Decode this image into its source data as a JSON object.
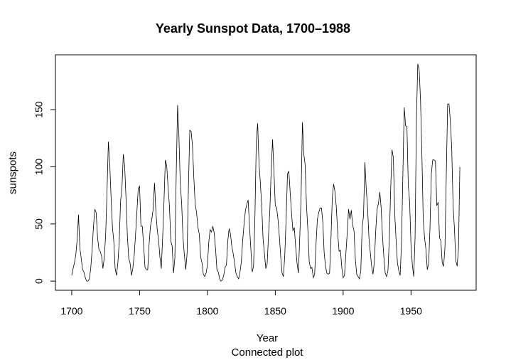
{
  "chart_data": {
    "type": "line",
    "title": "Yearly Sunspot Data, 1700–1988",
    "xlabel": "Year",
    "subtitle": "Connected plot",
    "ylabel": "sunspots",
    "xlim": [
      1688,
      1998
    ],
    "ylim": [
      -8,
      198
    ],
    "xticks": [
      1700,
      1750,
      1800,
      1850,
      1900,
      1950
    ],
    "yticks": [
      0,
      50,
      100,
      150
    ],
    "grid": false,
    "series": [
      {
        "start_year": 1700,
        "values": [
          5,
          11,
          16,
          23,
          36,
          58,
          29,
          20,
          10,
          8,
          3,
          0,
          0,
          2,
          11,
          27,
          47,
          63,
          60,
          39,
          28,
          26,
          22,
          11,
          21,
          40,
          78,
          122,
          103,
          73,
          47,
          35,
          11,
          5,
          16,
          34,
          70,
          81,
          111,
          101,
          73,
          40,
          20,
          16,
          5,
          11,
          22,
          40,
          60,
          81,
          83,
          48,
          48,
          31,
          12,
          10,
          10,
          32,
          48,
          54,
          63,
          86,
          61,
          45,
          36,
          21,
          11,
          38,
          70,
          106,
          101,
          82,
          66,
          35,
          31,
          7,
          20,
          93,
          154,
          126,
          85,
          68,
          38,
          23,
          10,
          24,
          83,
          132,
          131,
          118,
          90,
          67,
          60,
          47,
          41,
          21,
          16,
          6,
          4,
          7,
          14,
          34,
          45,
          43,
          48,
          42,
          28,
          10,
          8,
          2,
          0,
          1,
          5,
          12,
          14,
          35,
          46,
          41,
          30,
          24,
          16,
          7,
          4,
          2,
          8,
          17,
          36,
          50,
          62,
          67,
          71,
          48,
          28,
          8,
          13,
          57,
          122,
          138,
          103,
          86,
          65,
          37,
          24,
          11,
          15,
          40,
          62,
          98,
          124,
          96,
          66,
          64,
          54,
          39,
          21,
          7,
          4,
          23,
          55,
          94,
          96,
          77,
          59,
          44,
          47,
          30,
          16,
          7,
          37,
          74,
          139,
          111,
          102,
          66,
          45,
          17,
          11,
          12,
          3,
          6,
          32,
          54,
          60,
          64,
          64,
          52,
          25,
          13,
          7,
          6,
          7,
          36,
          73,
          85,
          78,
          64,
          42,
          26,
          27,
          12,
          3,
          5,
          24,
          42,
          63,
          54,
          62,
          49,
          44,
          19,
          6,
          4,
          2,
          9,
          47,
          57,
          104,
          81,
          64,
          38,
          25,
          13,
          6,
          17,
          44,
          63,
          68,
          78,
          64,
          39,
          21,
          7,
          4,
          9,
          36,
          80,
          115,
          108,
          59,
          36,
          16,
          9,
          5,
          33,
          93,
          152,
          136,
          135,
          84,
          69,
          31,
          14,
          4,
          38,
          142,
          190,
          185,
          159,
          112,
          54,
          38,
          28,
          10,
          15,
          47,
          94,
          106,
          106,
          105,
          66,
          69,
          38,
          35,
          16,
          13,
          29,
          93,
          155,
          155,
          140,
          116,
          66,
          46,
          18,
          13,
          29,
          100
        ]
      }
    ]
  }
}
